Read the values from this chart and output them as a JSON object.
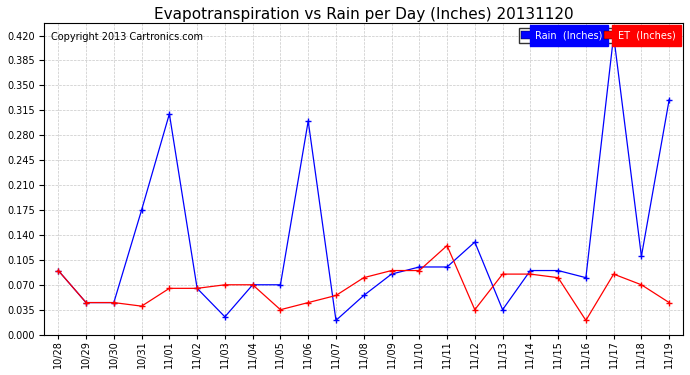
{
  "title": "Evapotranspiration vs Rain per Day (Inches) 20131120",
  "copyright": "Copyright 2013 Cartronics.com",
  "x_labels": [
    "10/28",
    "10/29",
    "10/30",
    "10/31",
    "11/01",
    "11/02",
    "11/03",
    "11/04",
    "11/05",
    "11/06",
    "11/07",
    "11/08",
    "11/09",
    "11/10",
    "11/11",
    "11/12",
    "11/13",
    "11/14",
    "11/15",
    "11/16",
    "11/17",
    "11/18",
    "11/19"
  ],
  "rain_values": [
    0.09,
    0.045,
    0.045,
    0.175,
    0.31,
    0.065,
    0.025,
    0.07,
    0.07,
    0.3,
    0.02,
    0.055,
    0.085,
    0.095,
    0.095,
    0.13,
    0.035,
    0.09,
    0.09,
    0.08,
    0.42,
    0.11,
    0.33
  ],
  "et_values": [
    0.09,
    0.045,
    0.045,
    0.04,
    0.065,
    0.065,
    0.07,
    0.07,
    0.035,
    0.045,
    0.055,
    0.08,
    0.09,
    0.09,
    0.125,
    0.035,
    0.085,
    0.085,
    0.08,
    0.02,
    0.085,
    0.07,
    0.045
  ],
  "ylim_min": 0.0,
  "ylim_max": 0.4375,
  "yticks": [
    0.0,
    0.035,
    0.07,
    0.105,
    0.14,
    0.175,
    0.21,
    0.245,
    0.28,
    0.315,
    0.35,
    0.385,
    0.42
  ],
  "rain_color": "#0000ff",
  "et_color": "#ff0000",
  "background_color": "#ffffff",
  "grid_color": "#c8c8c8",
  "title_fontsize": 11,
  "tick_fontsize": 7,
  "copyright_fontsize": 7,
  "legend_fontsize": 7
}
